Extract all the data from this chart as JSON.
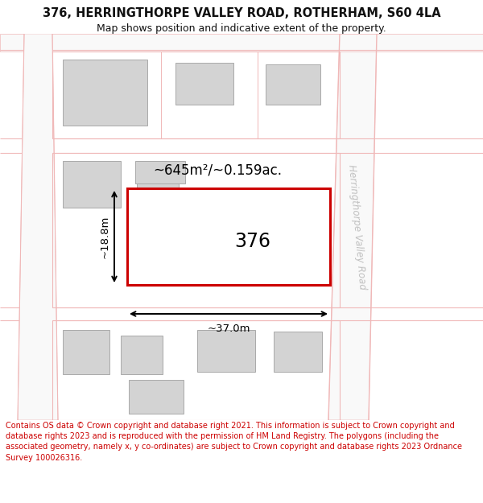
{
  "title_line1": "376, HERRINGTHORPE VALLEY ROAD, ROTHERHAM, S60 4LA",
  "title_line2": "Map shows position and indicative extent of the property.",
  "footer_text": "Contains OS data © Crown copyright and database right 2021. This information is subject to Crown copyright and database rights 2023 and is reproduced with the permission of HM Land Registry. The polygons (including the associated geometry, namely x, y co-ordinates) are subject to Crown copyright and database rights 2023 Ordnance Survey 100026316.",
  "bg_color": "#ffffff",
  "road_color": "#f0b8b8",
  "building_color": "#d3d3d3",
  "building_edge": "#aaaaaa",
  "highlight_color": "#cc0000",
  "road_label": "Herringthorpe Valley Road",
  "plot_label": "376",
  "area_label": "~645m²/~0.159ac.",
  "width_label": "~37.0m",
  "height_label": "~18.8m",
  "footer_color": "#cc0000",
  "title_fontsize": 10.5,
  "subtitle_fontsize": 9,
  "footer_fontsize": 7.0
}
